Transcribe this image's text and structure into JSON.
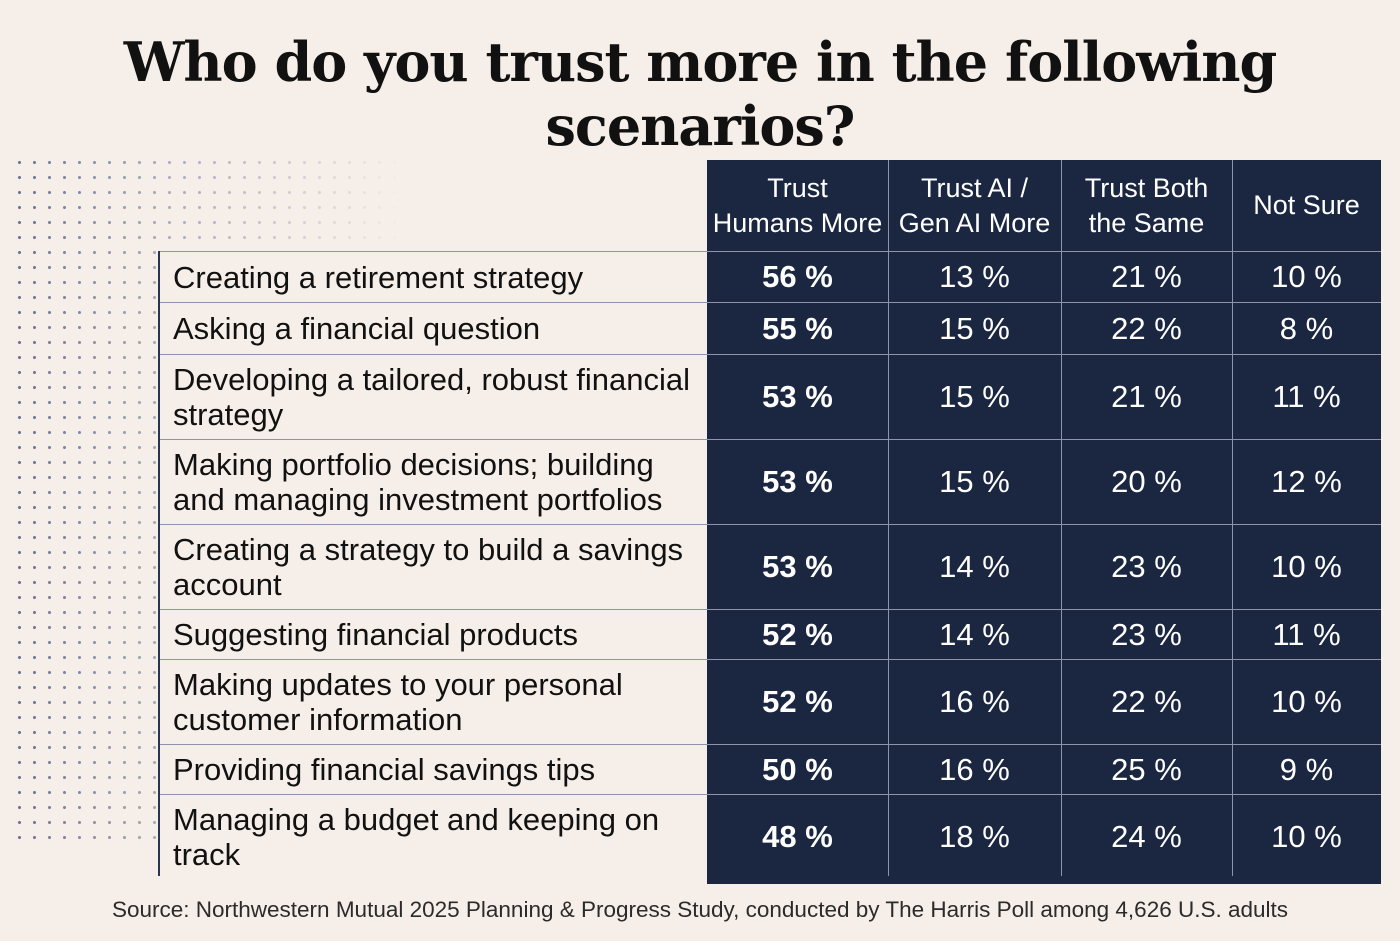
{
  "title": "Who do you trust more in the following scenarios?",
  "source": "Source: Northwestern Mutual 2025 Planning & Progress Study, conducted by The Harris Poll among 4,626 U.S. adults",
  "colors": {
    "navy": "#1b2641",
    "background": "#f6efe9",
    "text": "#111111"
  },
  "chart_data": {
    "type": "table",
    "title": "Who do you trust more in the following scenarios?",
    "columns": [
      "Trust\nHumans More",
      "Trust AI /\nGen AI More",
      "Trust Both\nthe Same",
      "Not Sure"
    ],
    "rows": [
      {
        "label": "Creating a retirement strategy",
        "values": [
          "56 %",
          "13 %",
          "21 %",
          "10 %"
        ]
      },
      {
        "label": "Asking a financial question",
        "values": [
          "55 %",
          "15 %",
          "22 %",
          "8 %"
        ]
      },
      {
        "label": "Developing a tailored, robust financial strategy",
        "values": [
          "53 %",
          "15 %",
          "21 %",
          "11 %"
        ]
      },
      {
        "label": "Making portfolio decisions; building and managing investment portfolios",
        "values": [
          "53 %",
          "15 %",
          "20 %",
          "12 %"
        ]
      },
      {
        "label": "Creating a strategy to build a savings account",
        "values": [
          "53 %",
          "14 %",
          "23 %",
          "10 %"
        ]
      },
      {
        "label": "Suggesting financial products",
        "values": [
          "52 %",
          "14 %",
          "23 %",
          "11 %"
        ]
      },
      {
        "label": "Making updates to your personal customer information",
        "values": [
          "52 %",
          "16 %",
          "22 %",
          "10 %"
        ]
      },
      {
        "label": "Providing financial savings tips",
        "values": [
          "50 %",
          "16 %",
          "25 %",
          "9 %"
        ]
      },
      {
        "label": "Managing a budget and keeping on track",
        "values": [
          "48 %",
          "18 %",
          "24 %",
          "10 %"
        ]
      }
    ]
  }
}
